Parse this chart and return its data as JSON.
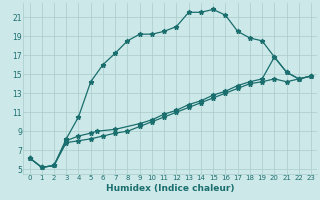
{
  "xlabel": "Humidex (Indice chaleur)",
  "background_color": "#cde8e8",
  "grid_color": "#aacccc",
  "line_color": "#1a6e6e",
  "xlim": [
    -0.5,
    23.5
  ],
  "ylim": [
    4.5,
    22.5
  ],
  "yticks": [
    5,
    7,
    9,
    11,
    13,
    15,
    17,
    19,
    21
  ],
  "xticks": [
    0,
    1,
    2,
    3,
    4,
    5,
    6,
    7,
    8,
    9,
    10,
    11,
    12,
    13,
    14,
    15,
    16,
    17,
    18,
    19,
    20,
    21,
    22,
    23
  ],
  "series": [
    {
      "x": [
        0,
        1,
        2,
        3,
        4,
        5,
        6,
        7,
        8,
        9,
        10,
        11,
        12,
        13,
        14,
        15,
        16,
        17,
        18,
        19,
        20,
        21,
        22,
        23
      ],
      "y": [
        6.2,
        5.2,
        5.4,
        8.2,
        10.5,
        14.2,
        16.0,
        17.2,
        18.5,
        19.2,
        19.2,
        19.5,
        20.0,
        21.5,
        21.5,
        21.8,
        21.2,
        19.5,
        18.8,
        18.5,
        16.8,
        15.2,
        14.5,
        14.8
      ]
    },
    {
      "x": [
        0,
        1,
        2,
        3,
        4,
        5,
        5.5,
        7,
        9,
        10,
        11,
        12,
        13,
        14,
        15,
        16,
        17,
        18,
        19,
        20,
        21,
        22,
        23
      ],
      "y": [
        6.2,
        5.2,
        5.4,
        8.0,
        8.5,
        8.8,
        9.0,
        9.2,
        9.8,
        10.2,
        10.8,
        11.2,
        11.8,
        12.2,
        12.8,
        13.2,
        13.8,
        14.2,
        14.5,
        16.8,
        15.2,
        14.5,
        14.8
      ]
    },
    {
      "x": [
        0,
        1,
        2,
        3,
        4,
        5,
        6,
        7,
        8,
        9,
        10,
        11,
        12,
        13,
        14,
        15,
        16,
        17,
        18,
        19,
        20,
        21,
        22,
        23
      ],
      "y": [
        6.2,
        5.2,
        5.4,
        7.8,
        8.0,
        8.2,
        8.5,
        8.8,
        9.0,
        9.5,
        10.0,
        10.5,
        11.0,
        11.5,
        12.0,
        12.5,
        13.0,
        13.5,
        14.0,
        14.2,
        14.5,
        14.2,
        14.5,
        14.8
      ]
    }
  ]
}
